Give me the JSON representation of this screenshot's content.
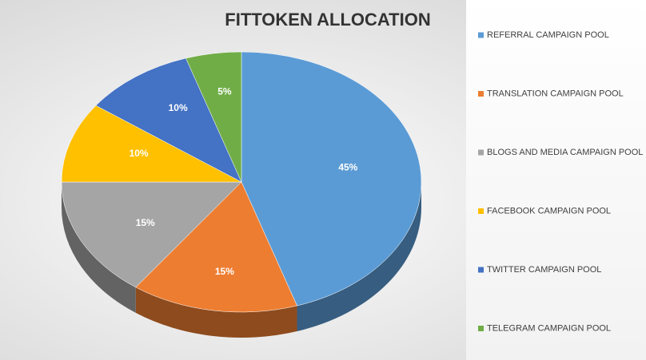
{
  "chart_data": {
    "type": "pie",
    "title": "FITTOKEN ALLOCATION",
    "categories": [
      "REFERRAL CAMPAIGN POOL",
      "TRANSLATION CAMPAIGN POOL",
      "BLOGS AND MEDIA CAMPAIGN POOL",
      "FACEBOOK CAMPAIGN POOL",
      "TWITTER CAMPAIGN POOL",
      "TELEGRAM CAMPAIGN POOL"
    ],
    "values": [
      45,
      15,
      15,
      10,
      10,
      5
    ],
    "value_labels": [
      "45%",
      "15%",
      "15%",
      "10%",
      "10%",
      "5%"
    ],
    "colors": [
      "#5b9bd5",
      "#ed7d31",
      "#a5a5a5",
      "#ffc000",
      "#4472c4",
      "#70ad47"
    ],
    "legend": "right"
  }
}
